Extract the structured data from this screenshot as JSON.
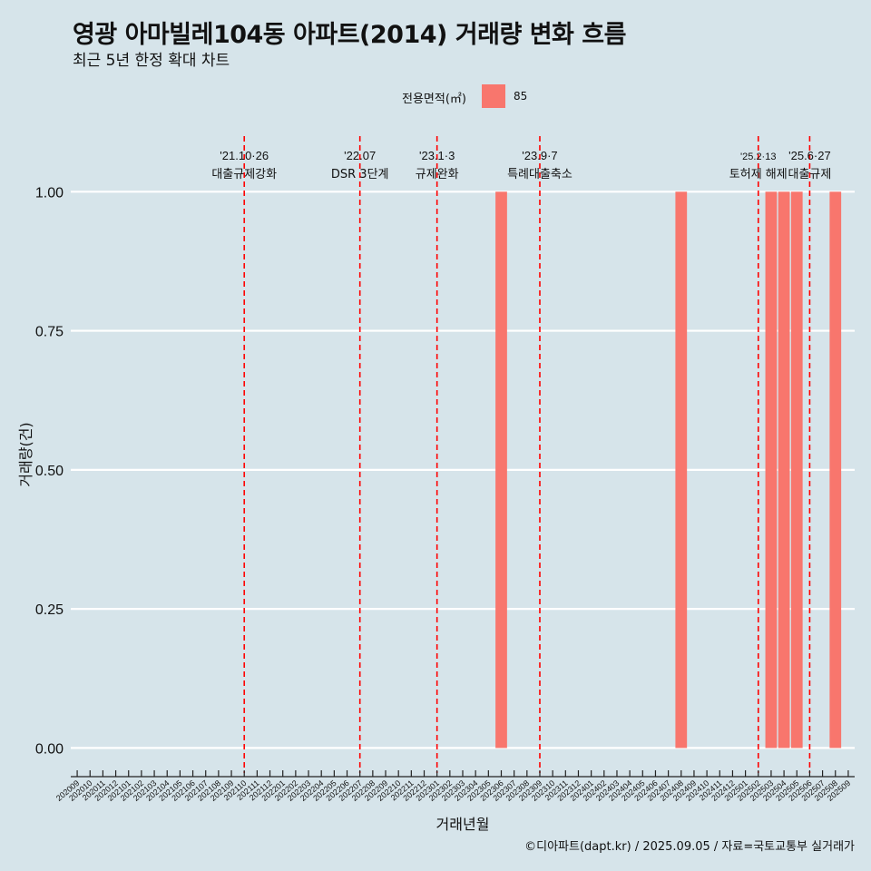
{
  "chart_data": {
    "type": "bar",
    "title": "영광 아마빌레104동 아파트(2014) 거래량 변화 흐름",
    "subtitle": "최근 5년 한정 확대 차트",
    "xlabel": "거래년월",
    "ylabel": "거래량(건)",
    "ylim": [
      -0.045,
      1.1
    ],
    "yticks": [
      0,
      0.25,
      0.5,
      0.75,
      1
    ],
    "ytick_labels": [
      "0.00",
      "0.25",
      "0.50",
      "0.75",
      "1.00"
    ],
    "grid": "horizontal",
    "legend": {
      "title": "전용면적(㎡)",
      "placement": "top-center",
      "entries": [
        "85"
      ]
    },
    "colors": {
      "bar": "#f8766d",
      "background": "#d6e4ea",
      "event_line": "#ff0000",
      "grid": "#ffffff"
    },
    "categories": [
      "202009",
      "202010",
      "202011",
      "202012",
      "202101",
      "202102",
      "202103",
      "202104",
      "202105",
      "202106",
      "202107",
      "202108",
      "202109",
      "202110",
      "202111",
      "202112",
      "202201",
      "202202",
      "202203",
      "202204",
      "202205",
      "202206",
      "202207",
      "202208",
      "202209",
      "202210",
      "202211",
      "202212",
      "202301",
      "202302",
      "202303",
      "202304",
      "202305",
      "202306",
      "202307",
      "202308",
      "202309",
      "202310",
      "202311",
      "202312",
      "202401",
      "202402",
      "202403",
      "202404",
      "202405",
      "202406",
      "202407",
      "202408",
      "202409",
      "202410",
      "202411",
      "202412",
      "202501",
      "202502",
      "202503",
      "202504",
      "202505",
      "202506",
      "202507",
      "202508",
      "202509"
    ],
    "series": [
      {
        "name": "85",
        "values": [
          0,
          0,
          0,
          0,
          0,
          0,
          0,
          0,
          0,
          0,
          0,
          0,
          0,
          0,
          0,
          0,
          0,
          0,
          0,
          0,
          0,
          0,
          0,
          0,
          0,
          0,
          0,
          0,
          0,
          0,
          0,
          0,
          0,
          1,
          0,
          0,
          0,
          0,
          0,
          0,
          0,
          0,
          0,
          0,
          0,
          0,
          0,
          1,
          0,
          0,
          0,
          0,
          0,
          0,
          1,
          1,
          1,
          0,
          0,
          1,
          0
        ]
      }
    ],
    "bar_months": [
      "202306",
      "202408",
      "202503",
      "202504",
      "202505",
      "202508"
    ],
    "events": [
      {
        "date": "2021-10-26",
        "x": "202110",
        "label1": "'21.10·26",
        "label2": "대출규제강화"
      },
      {
        "date": "2022-07",
        "x": "202207",
        "label1": "'22.07",
        "label2": "DSR 3단계"
      },
      {
        "date": "2023-01-03",
        "x": "202301",
        "label1": "'23.1·3",
        "label2": "규제완화"
      },
      {
        "date": "2023-09-07",
        "x": "202309",
        "label1": "'23.9·7",
        "label2": "특례대출축소"
      },
      {
        "date": "2025-02-13",
        "x": "202502",
        "label1": "'25.2·13",
        "label2": "토허제 해제"
      },
      {
        "date": "2025-06-27",
        "x": "202506",
        "label1": "'25.6·27",
        "label2": "대출규제"
      }
    ]
  },
  "caption": "©디아파트(dapt.kr) / 2025.09.05 / 자료=국토교통부 실거래가"
}
